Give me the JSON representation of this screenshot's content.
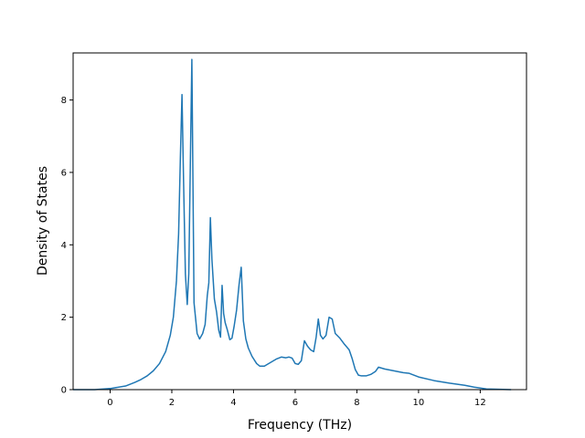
{
  "chart_data": {
    "type": "line",
    "xlabel": "Frequency (THz)",
    "ylabel": "Density of States",
    "xlim": [
      -1.2,
      13.5
    ],
    "ylim": [
      0,
      9.3
    ],
    "xticks": [
      0,
      2,
      4,
      6,
      8,
      10,
      12
    ],
    "yticks": [
      0,
      2,
      4,
      6,
      8
    ],
    "grid": false,
    "series": [
      {
        "color": "#1f77b4",
        "x": [
          -1.2,
          -0.5,
          0.0,
          0.5,
          0.8,
          1.0,
          1.2,
          1.4,
          1.6,
          1.8,
          1.95,
          2.05,
          2.15,
          2.22,
          2.28,
          2.33,
          2.38,
          2.44,
          2.5,
          2.55,
          2.6,
          2.65,
          2.72,
          2.82,
          2.9,
          3.0,
          3.08,
          3.15,
          3.2,
          3.25,
          3.3,
          3.38,
          3.45,
          3.52,
          3.58,
          3.63,
          3.68,
          3.73,
          3.8,
          3.88,
          3.95,
          4.02,
          4.1,
          4.18,
          4.25,
          4.32,
          4.4,
          4.48,
          4.6,
          4.75,
          4.85,
          5.0,
          5.2,
          5.4,
          5.55,
          5.7,
          5.8,
          5.9,
          6.0,
          6.1,
          6.2,
          6.3,
          6.4,
          6.5,
          6.6,
          6.68,
          6.75,
          6.82,
          6.9,
          7.0,
          7.1,
          7.2,
          7.3,
          7.45,
          7.6,
          7.75,
          7.85,
          7.95,
          8.05,
          8.15,
          8.3,
          8.45,
          8.6,
          8.7,
          8.9,
          9.2,
          9.5,
          9.7,
          10.0,
          10.5,
          11.0,
          11.5,
          11.8,
          12.2,
          13.0
        ],
        "y": [
          0.0,
          0.0,
          0.03,
          0.1,
          0.2,
          0.28,
          0.38,
          0.52,
          0.72,
          1.05,
          1.5,
          2.0,
          3.0,
          4.3,
          6.5,
          8.15,
          5.8,
          3.2,
          2.35,
          3.2,
          6.2,
          9.12,
          2.4,
          1.55,
          1.4,
          1.55,
          1.8,
          2.6,
          2.95,
          4.75,
          3.6,
          2.5,
          2.15,
          1.65,
          1.45,
          2.88,
          2.1,
          1.85,
          1.65,
          1.38,
          1.42,
          1.75,
          2.2,
          2.9,
          3.38,
          1.9,
          1.4,
          1.15,
          0.92,
          0.72,
          0.65,
          0.65,
          0.75,
          0.85,
          0.9,
          0.88,
          0.9,
          0.87,
          0.72,
          0.7,
          0.8,
          1.35,
          1.2,
          1.1,
          1.05,
          1.45,
          1.95,
          1.5,
          1.4,
          1.5,
          2.0,
          1.95,
          1.55,
          1.42,
          1.25,
          1.1,
          0.85,
          0.55,
          0.4,
          0.38,
          0.38,
          0.42,
          0.5,
          0.62,
          0.57,
          0.52,
          0.47,
          0.45,
          0.35,
          0.25,
          0.18,
          0.12,
          0.07,
          0.02,
          0.0
        ]
      }
    ]
  }
}
